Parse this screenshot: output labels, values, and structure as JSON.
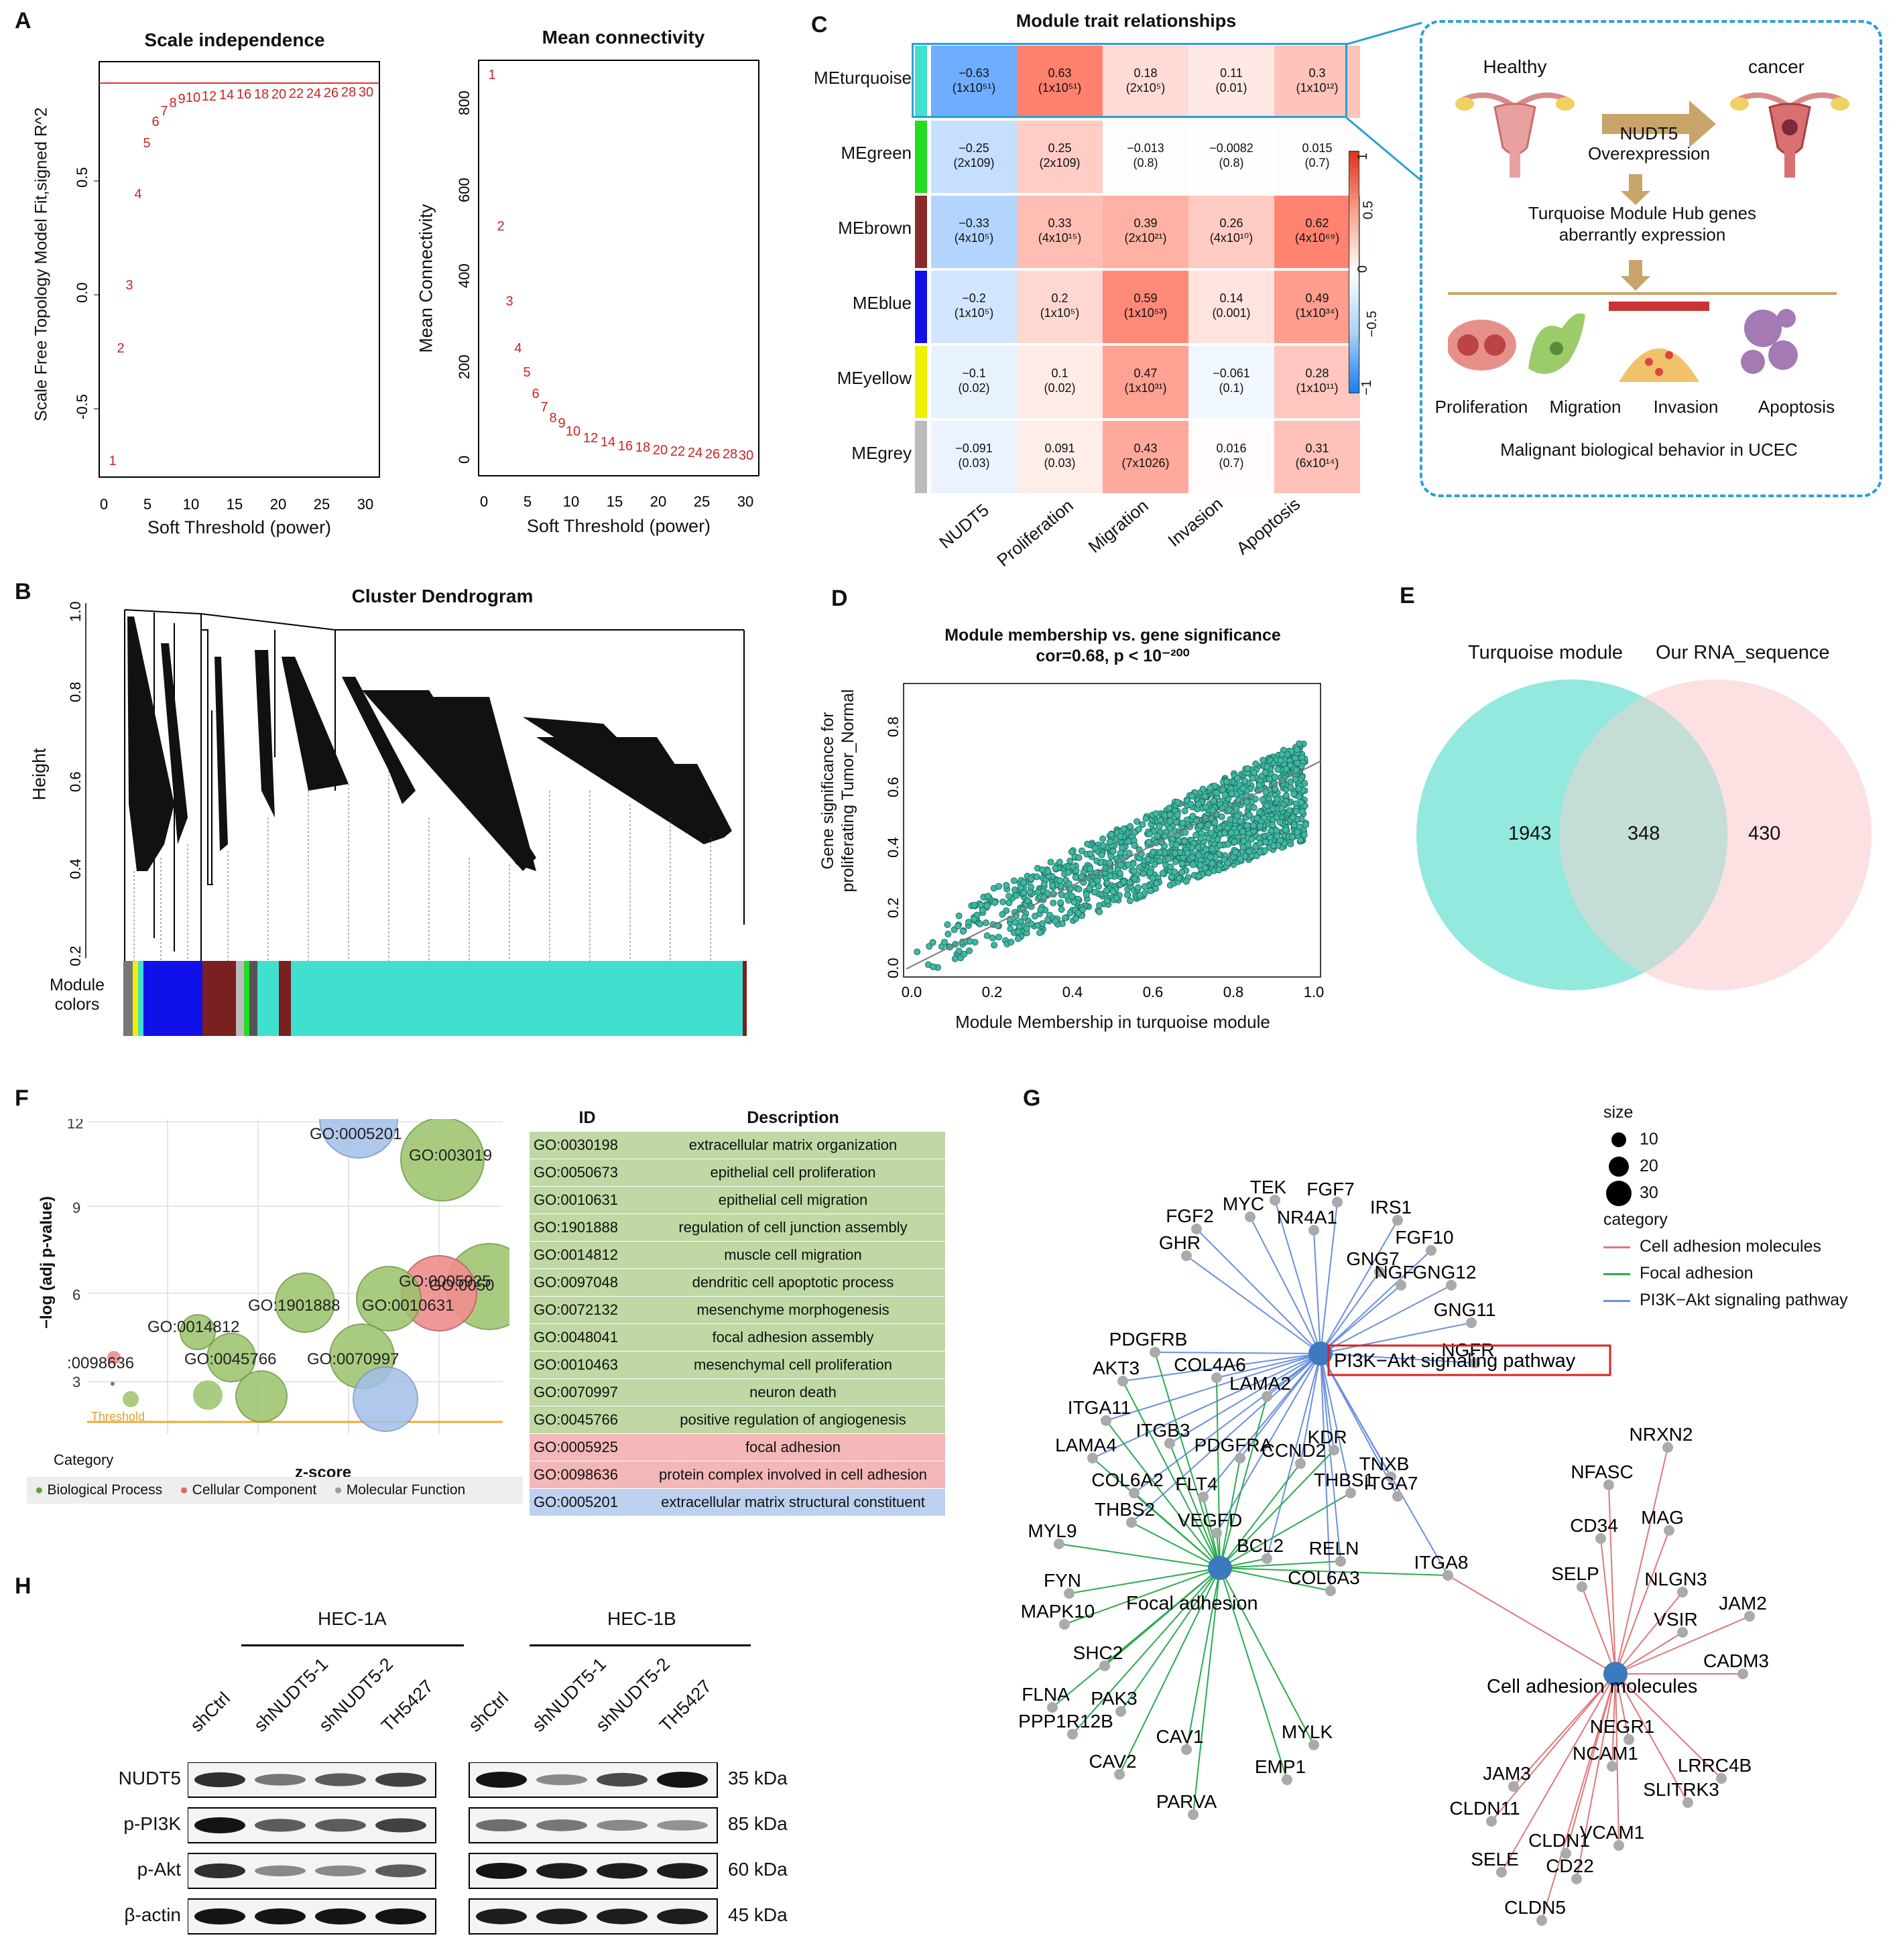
{
  "panels": {
    "A": "A",
    "B": "B",
    "C": "C",
    "D": "D",
    "E": "E",
    "F": "F",
    "G": "G",
    "H": "H"
  },
  "panel_a": {
    "scale_title": "Scale independence",
    "scale_ylabel": "Scale Free Topology Model Fit,signed R^2",
    "scale_xlabel": "Soft Threshold (power)",
    "mean_title": "Mean connectivity",
    "mean_ylabel": "Mean Connectivity",
    "mean_xlabel": "Soft Threshold (power)"
  },
  "panel_b": {
    "title": "Cluster Dendrogram",
    "ylabel": "Height",
    "colors_label": "Module\ncolors"
  },
  "panel_c": {
    "title": "Module  trait relationships",
    "rows": [
      "MEturquoise",
      "MEgreen",
      "MEbrown",
      "MEblue",
      "MEyellow",
      "MEgrey"
    ],
    "row_colors": [
      "#40e0d0",
      "#22dd22",
      "#8b2a2a",
      "#1010e8",
      "#f0f000",
      "#bbbbbb"
    ],
    "cols": [
      "NUDT5",
      "Proliferation",
      "Migration",
      "Invasion",
      "Apoptosis"
    ],
    "cells": [
      [
        [
          "−0.63",
          "(1x10⁵¹)"
        ],
        [
          "0.63",
          "(1x10⁵¹)"
        ],
        [
          "0.18",
          "(2x10⁵)"
        ],
        [
          "0.11",
          "(0.01)"
        ],
        [
          "0.3",
          "(1x10¹²)"
        ]
      ],
      [
        [
          "−0.25",
          "(2x109)"
        ],
        [
          "0.25",
          "(2x109)"
        ],
        [
          "−0.013",
          "(0.8)"
        ],
        [
          "−0.0082",
          "(0.8)"
        ],
        [
          "0.015",
          "(0.7)"
        ]
      ],
      [
        [
          "−0.33",
          "(4x10⁵)"
        ],
        [
          "0.33",
          "(4x10¹⁵)"
        ],
        [
          "0.39",
          "(2x10²¹)"
        ],
        [
          "0.26",
          "(4x10¹⁰)"
        ],
        [
          "0.62",
          "(4x10⁶⁹)"
        ]
      ],
      [
        [
          "−0.2",
          "(1x10⁵)"
        ],
        [
          "0.2",
          "(1x10⁵)"
        ],
        [
          "0.59",
          "(1x10⁵³)"
        ],
        [
          "0.14",
          "(0.001)"
        ],
        [
          "0.49",
          "(1x10³⁴)"
        ]
      ],
      [
        [
          "−0.1",
          "(0.02)"
        ],
        [
          "0.1",
          "(0.02)"
        ],
        [
          "0.47",
          "(1x10³¹)"
        ],
        [
          "−0.061",
          "(0.1)"
        ],
        [
          "0.28",
          "(1x10¹¹)"
        ]
      ],
      [
        [
          "−0.091",
          "(0.03)"
        ],
        [
          "0.091",
          "(0.03)"
        ],
        [
          "0.43",
          "(7x1026)"
        ],
        [
          "0.016",
          "(0.7)"
        ],
        [
          "0.31",
          "(6x10¹⁴)"
        ]
      ]
    ],
    "values": [
      [
        -0.63,
        0.63,
        0.18,
        0.11,
        0.3
      ],
      [
        -0.25,
        0.25,
        -0.013,
        -0.0082,
        0.015
      ],
      [
        -0.33,
        0.33,
        0.39,
        0.26,
        0.62
      ],
      [
        -0.2,
        0.2,
        0.59,
        0.14,
        0.49
      ],
      [
        -0.1,
        0.1,
        0.47,
        -0.061,
        0.28
      ],
      [
        -0.091,
        0.091,
        0.43,
        0.016,
        0.31
      ]
    ],
    "legend_ticks": [
      "1",
      "0.5",
      "0",
      "−0.5",
      "−1"
    ],
    "schema": {
      "healthy": "Healthy",
      "cancer": "cancer",
      "nudt5": "NUDT5\nOverexpression",
      "hub": "Turquoise Module Hub genes\naberrantly expression",
      "proliferation": "Proliferation",
      "migration": "Migration",
      "invasion": "Invasion",
      "apoptosis": "Apoptosis",
      "footer": "Malignant biological behavior in UCEC"
    }
  },
  "panel_d": {
    "title": "Module membership vs. gene significance",
    "subtitle": "cor=0.68, p < 10⁻²⁰⁰",
    "ylabel1": "Gene significance for",
    "ylabel2": "proliferating Tumor_Normal",
    "xlabel": "Module Membership in turquoise module"
  },
  "panel_e": {
    "left_label": "Turquoise module",
    "right_label": "Our RNA_sequence",
    "left_only": "1943",
    "overlap": "348",
    "right_only": "430"
  },
  "panel_f": {
    "ylabel": "−log (adj p-value)",
    "xlabel": "z-score",
    "threshold": "Threshold",
    "category": "Category",
    "legend": [
      "Biological Process",
      "Cellular Component",
      "Molecular Function"
    ],
    "bubble_labels": [
      "GO:0005201",
      "GO:003019",
      "GO:0050",
      "GO:0005925",
      "GO:0010631",
      "GO:1901888",
      "GO:0014812",
      ":0098636",
      "GO:0045766",
      "GO:0070997"
    ],
    "table_header": [
      "ID",
      "Description"
    ],
    "table": [
      {
        "id": "GO:0030198",
        "desc": "extracellular matrix organization",
        "cat": "bp"
      },
      {
        "id": "GO:0050673",
        "desc": "epithelial cell proliferation",
        "cat": "bp"
      },
      {
        "id": "GO:0010631",
        "desc": "epithelial cell migration",
        "cat": "bp"
      },
      {
        "id": "GO:1901888",
        "desc": "regulation of cell junction assembly",
        "cat": "bp"
      },
      {
        "id": "GO:0014812",
        "desc": "muscle cell migration",
        "cat": "bp"
      },
      {
        "id": "GO:0097048",
        "desc": "dendritic cell apoptotic process",
        "cat": "bp"
      },
      {
        "id": "GO:0072132",
        "desc": "mesenchyme morphogenesis",
        "cat": "bp"
      },
      {
        "id": "GO:0048041",
        "desc": "focal adhesion assembly",
        "cat": "bp"
      },
      {
        "id": "GO:0010463",
        "desc": "mesenchymal cell proliferation",
        "cat": "bp"
      },
      {
        "id": "GO:0070997",
        "desc": "neuron death",
        "cat": "bp"
      },
      {
        "id": "GO:0045766",
        "desc": "positive regulation of angiogenesis",
        "cat": "bp"
      },
      {
        "id": "GO:0005925",
        "desc": "focal adhesion",
        "cat": "cc"
      },
      {
        "id": "GO:0098636",
        "desc": "protein complex involved in cell adhesion",
        "cat": "cc"
      },
      {
        "id": "GO:0005201",
        "desc": "extracellular matrix structural constituent",
        "cat": "mf"
      }
    ]
  },
  "panel_g": {
    "hubs": [
      "PI3K−Akt signaling pathway",
      "Focal adhesion",
      "Cell adhesion molecules"
    ],
    "legend_size": "size",
    "sizes": [
      "10",
      "20",
      "30"
    ],
    "legend_category": "category",
    "categories": [
      "Cell adhesion molecules",
      "Focal adhesion",
      "PI3K−Akt signaling pathway"
    ],
    "genes_pi3k": [
      "TEK",
      "FGF7",
      "FGF2",
      "MYC",
      "IRS1",
      "GHR",
      "NR4A1",
      "FGF10",
      "GNG7",
      "NGF",
      "GNG12",
      "GNG11",
      "NGFR",
      "PDGFRB",
      "AKT3",
      "COL4A6",
      "LAMA2",
      "ITGA11",
      "ITGB3",
      "KDR",
      "TNXB",
      "LAMA4",
      "PDGFRA",
      "CCND2",
      "THBS1",
      "ITGA7",
      "COL6A2",
      "FLT4",
      "THBS2",
      "VEGFD",
      "BCL2",
      "RELN",
      "COL6A3",
      "ITGA8"
    ],
    "genes_focal": [
      "MYL9",
      "FYN",
      "MAPK10",
      "SHC2",
      "FLNA",
      "PAK3",
      "PPP1R12B",
      "CAV1",
      "MYLK",
      "CAV2",
      "EMP1",
      "PARVA"
    ],
    "genes_cam": [
      "NRXN2",
      "NFASC",
      "MAG",
      "CD34",
      "SELP",
      "NLGN3",
      "JAM2",
      "VSIR",
      "CADM3",
      "NEGR1",
      "NCAM1",
      "LRRC4B",
      "JAM3",
      "SLITRK3",
      "CLDN11",
      "VCAM1",
      "CLDN1",
      "SELE",
      "CD22",
      "CLDN5"
    ]
  },
  "panel_h": {
    "line1": "HEC-1A",
    "line2": "HEC-1B",
    "lanes": [
      "shCtrl",
      "shNUDT5-1",
      "shNUDT5-2",
      "TH5427"
    ],
    "proteins": [
      "NUDT5",
      "p-PI3K",
      "p-Akt",
      "β-actin"
    ],
    "kda": [
      "35 kDa",
      "85 kDa",
      "60 kDa",
      "45 kDa"
    ]
  }
}
